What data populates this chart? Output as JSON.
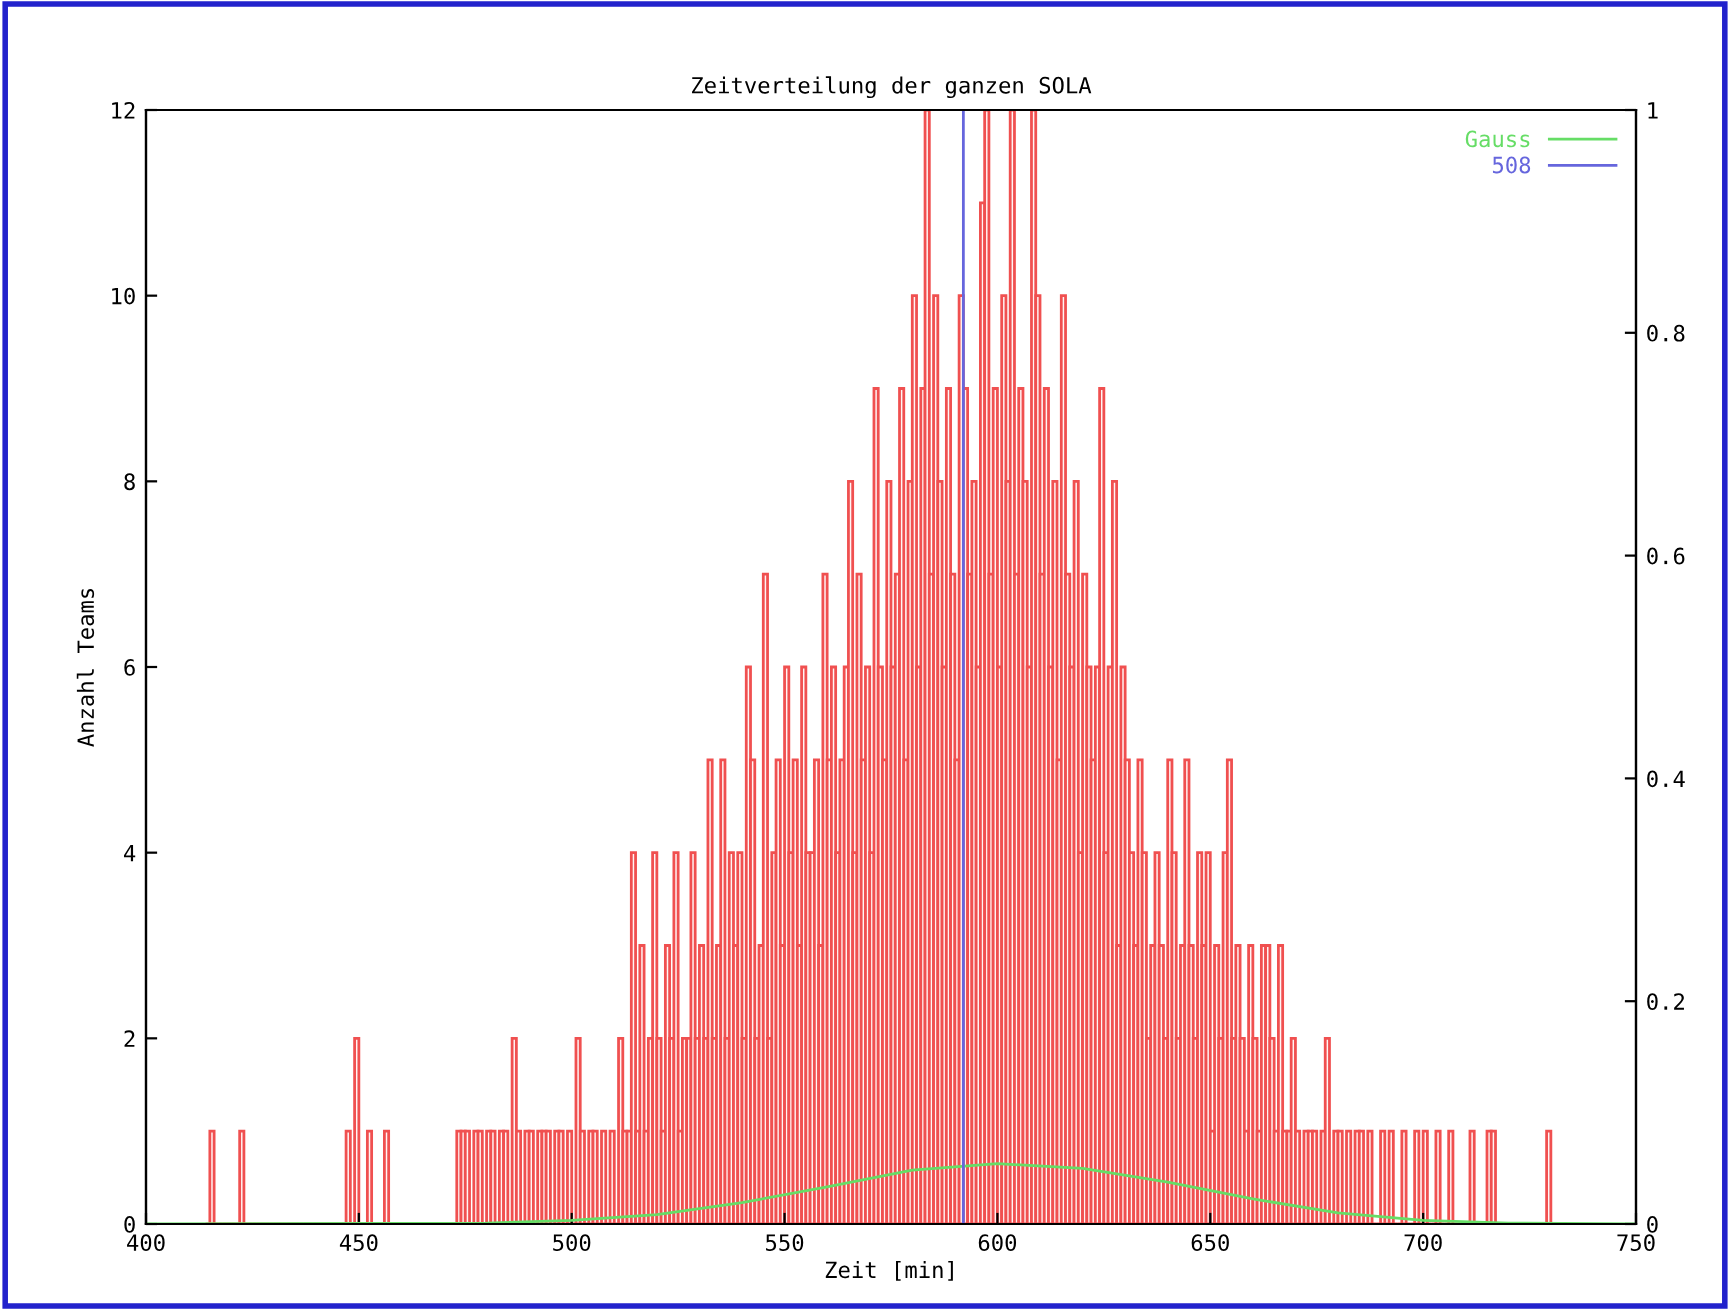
{
  "chart_data": {
    "type": "histogram",
    "title": "Zeitverteilung der ganzen SOLA",
    "xlabel": "Zeit [min]",
    "ylabel": "Anzahl Teams",
    "xlim": [
      400,
      750
    ],
    "xticks": [
      400,
      450,
      500,
      550,
      600,
      650,
      700,
      750
    ],
    "ylim": [
      0,
      12
    ],
    "yticks": [
      0,
      2,
      4,
      6,
      8,
      10,
      12
    ],
    "y2lim": [
      0,
      1
    ],
    "y2ticks": [
      0,
      0.2,
      0.4,
      0.6,
      0.8,
      1
    ],
    "grid": false,
    "legend": "top right",
    "series": [
      {
        "color": "#f05050",
        "bins": [
          414,
          415,
          416,
          417,
          418,
          419,
          420,
          421,
          422,
          423,
          424,
          425,
          426,
          427,
          428,
          429,
          430,
          431,
          432,
          433,
          434,
          435,
          436,
          437,
          438,
          439,
          440,
          441,
          442,
          443,
          444,
          445,
          446,
          447,
          448,
          449,
          450,
          451,
          452,
          453,
          454,
          455,
          456,
          457,
          458,
          459,
          460,
          461,
          462,
          463,
          464,
          465,
          466,
          467,
          468,
          469,
          470,
          471,
          472,
          473,
          474,
          475,
          476,
          477,
          478,
          479,
          480,
          481,
          482,
          483,
          484,
          485,
          486,
          487,
          488,
          489,
          490,
          491,
          492,
          493,
          494,
          495,
          496,
          497,
          498,
          499,
          500,
          501,
          502,
          503,
          504,
          505,
          506,
          507,
          508,
          509,
          510,
          511,
          512,
          513,
          514,
          515,
          516,
          517,
          518,
          519,
          520,
          521,
          522,
          523,
          524,
          525,
          526,
          527,
          528,
          529,
          530,
          531,
          532,
          533,
          534,
          535,
          536,
          537,
          538,
          539,
          540,
          541,
          542,
          543,
          544,
          545,
          546,
          547,
          548,
          549,
          550,
          551,
          552,
          553,
          554,
          555,
          556,
          557,
          558,
          559,
          560,
          561,
          562,
          563,
          564,
          565,
          566,
          567,
          568,
          569,
          570,
          571,
          572,
          573,
          574,
          575,
          576,
          577,
          578,
          579,
          580,
          581,
          582,
          583,
          584,
          585,
          586,
          587,
          588,
          589,
          590,
          591,
          592,
          593,
          594,
          595,
          596,
          597,
          598,
          599,
          600,
          601,
          602,
          603,
          604,
          605,
          606,
          607,
          608,
          609,
          610,
          611,
          612,
          613,
          614,
          615,
          616,
          617,
          618,
          619,
          620,
          621,
          622,
          623,
          624,
          625,
          626,
          627,
          628,
          629,
          630,
          631,
          632,
          633,
          634,
          635,
          636,
          637,
          638,
          639,
          640,
          641,
          642,
          643,
          644,
          645,
          646,
          647,
          648,
          649,
          650,
          651,
          652,
          653,
          654,
          655,
          656,
          657,
          658,
          659,
          660,
          661,
          662,
          663,
          664,
          665,
          666,
          667,
          668,
          669,
          670,
          671,
          672,
          673,
          674,
          675,
          676,
          677,
          678,
          679,
          680,
          681,
          682,
          683,
          684,
          685,
          686,
          687,
          688,
          689,
          690,
          691,
          692,
          693,
          694,
          695,
          696,
          697,
          698,
          699,
          700,
          701,
          702,
          703,
          704,
          705,
          706,
          707,
          708,
          709,
          710,
          711,
          712,
          713,
          714,
          715,
          716,
          717,
          718,
          719,
          720,
          721,
          722,
          723,
          724,
          725,
          726,
          727,
          728,
          729,
          730
        ],
        "values": [
          0,
          1,
          0,
          0,
          0,
          0,
          0,
          0,
          1,
          0,
          0,
          0,
          0,
          0,
          0,
          0,
          0,
          0,
          0,
          0,
          0,
          0,
          0,
          0,
          0,
          0,
          0,
          0,
          0,
          0,
          0,
          0,
          0,
          1,
          0,
          2,
          0,
          0,
          1,
          0,
          0,
          0,
          1,
          0,
          0,
          0,
          0,
          0,
          0,
          0,
          0,
          0,
          0,
          0,
          0,
          0,
          0,
          0,
          0,
          1,
          1,
          1,
          0,
          1,
          1,
          0,
          1,
          1,
          0,
          1,
          1,
          0,
          2,
          1,
          0,
          1,
          1,
          0,
          1,
          1,
          1,
          0,
          1,
          1,
          0,
          1,
          0,
          2,
          1,
          0,
          1,
          1,
          0,
          1,
          0,
          1,
          0,
          2,
          1,
          1,
          4,
          1,
          3,
          1,
          2,
          4,
          2,
          1,
          3,
          2,
          4,
          1,
          2,
          2,
          4,
          2,
          3,
          2,
          5,
          2,
          3,
          5,
          2,
          4,
          3,
          4,
          2,
          6,
          5,
          2,
          3,
          7,
          2,
          4,
          5,
          3,
          6,
          4,
          5,
          3,
          6,
          4,
          4,
          5,
          3,
          7,
          5,
          6,
          4,
          5,
          6,
          8,
          4,
          7,
          5,
          6,
          4,
          9,
          6,
          5,
          8,
          6,
          7,
          9,
          5,
          8,
          10,
          6,
          9,
          12,
          7,
          10,
          8,
          6,
          9,
          7,
          5,
          10,
          9,
          7,
          8,
          6,
          11,
          12,
          7,
          9,
          6,
          10,
          8,
          12,
          7,
          9,
          8,
          6,
          12,
          10,
          7,
          9,
          6,
          8,
          5,
          10,
          7,
          6,
          8,
          4,
          7,
          6,
          5,
          6,
          9,
          4,
          6,
          8,
          3,
          6,
          5,
          4,
          3,
          5,
          4,
          2,
          3,
          4,
          3,
          2,
          5,
          4,
          2,
          3,
          5,
          3,
          2,
          4,
          3,
          4,
          1,
          3,
          2,
          4,
          5,
          2,
          3,
          2,
          1,
          3,
          2,
          1,
          3,
          3,
          2,
          1,
          3,
          1,
          1,
          2,
          1,
          0,
          1,
          1,
          1,
          0,
          1,
          2,
          0,
          1,
          1,
          0,
          1,
          0,
          1,
          1,
          0,
          1,
          0,
          0,
          1,
          0,
          1,
          0,
          0,
          1,
          0,
          0,
          1,
          0,
          1,
          0,
          0,
          1,
          0,
          0,
          1,
          0,
          0,
          0,
          0,
          1,
          0,
          0,
          0,
          1,
          1,
          0,
          0,
          0,
          0,
          0,
          0,
          0,
          0,
          0,
          0,
          0,
          0,
          1
        ]
      },
      {
        "type": "line",
        "name": "Gauss",
        "color": "#66dd66",
        "x": [
          400,
          480,
          500,
          520,
          540,
          560,
          580,
          600,
          620,
          640,
          660,
          680,
          700,
          720,
          750
        ],
        "values": [
          0,
          0.01,
          0.04,
          0.1,
          0.23,
          0.4,
          0.58,
          0.65,
          0.6,
          0.45,
          0.27,
          0.12,
          0.04,
          0.01,
          0
        ]
      },
      {
        "type": "line",
        "name": "508",
        "color": "#6666dd",
        "axis": "y2",
        "x": [
          592,
          592
        ],
        "values": [
          0,
          1
        ]
      }
    ]
  }
}
